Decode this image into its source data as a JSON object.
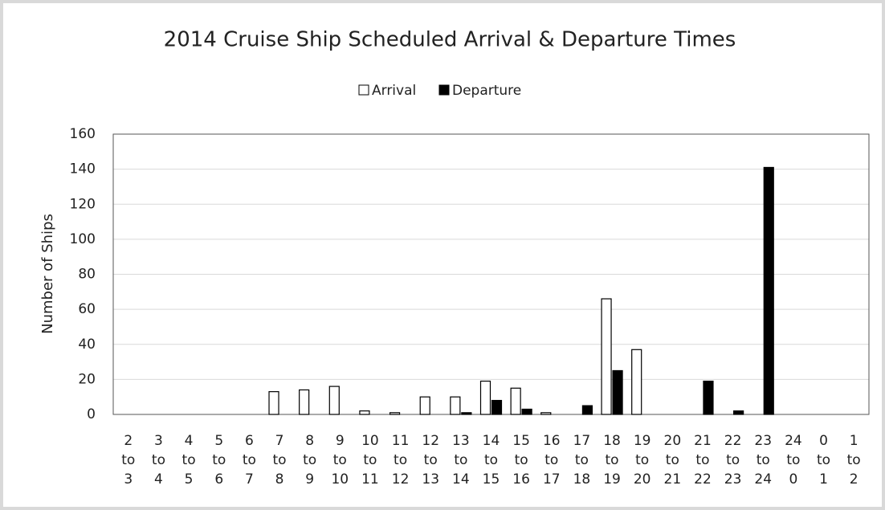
{
  "chart_data": {
    "type": "bar",
    "title": "2014 Cruise Ship Scheduled Arrival & Departure Times",
    "y_label": "Number of Ships",
    "categories": [
      "2 to 3",
      "3 to 4",
      "4 to 5",
      "5 to 6",
      "6 to 7",
      "7 to 8",
      "8 to 9",
      "9 to 10",
      "10 to 11",
      "11 to 12",
      "12 to 13",
      "13 to 14",
      "14 to 15",
      "15 to 16",
      "16 to 17",
      "17 to 18",
      "18 to 19",
      "19 to 20",
      "20 to 21",
      "21 to 22",
      "22 to 23",
      "23 to 24",
      "24 to 0",
      "0 to 1",
      "1 to 2"
    ],
    "series": [
      {
        "name": "Arrival",
        "color": "#ffffff",
        "values": [
          0,
          0,
          0,
          0,
          0,
          13,
          14,
          16,
          2,
          1,
          10,
          10,
          19,
          15,
          1,
          0,
          66,
          37,
          0,
          0,
          0,
          0,
          0,
          0,
          0
        ]
      },
      {
        "name": "Departure",
        "color": "#000000",
        "values": [
          0,
          0,
          0,
          0,
          0,
          0,
          0,
          0,
          0,
          0,
          0,
          1,
          8,
          3,
          0,
          5,
          25,
          0,
          0,
          19,
          2,
          141,
          0,
          0,
          0
        ]
      }
    ],
    "ylim": [
      0,
      160
    ],
    "yticks": [
      0,
      20,
      40,
      60,
      80,
      100,
      120,
      140,
      160
    ],
    "grid": true,
    "legend": "top"
  }
}
